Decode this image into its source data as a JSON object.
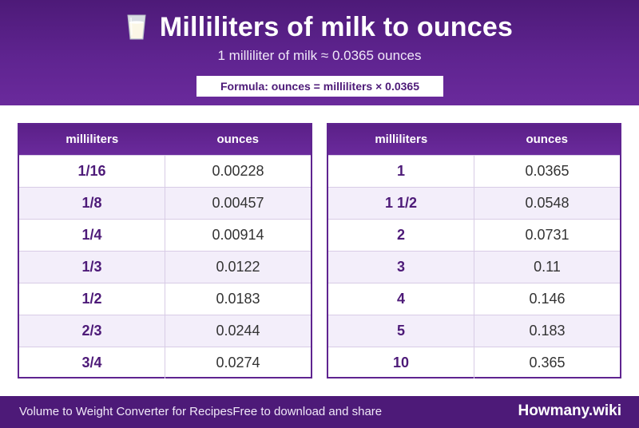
{
  "header": {
    "icon": "milk-glass-icon",
    "title": "Milliliters of milk to ounces",
    "subtitle": "1 milliliter of milk ≈ 0.0365 ounces",
    "formula": "Formula: ounces = milliliters × 0.0365"
  },
  "tables": [
    {
      "headers": [
        "milliliters",
        "ounces"
      ],
      "rows": [
        {
          "ml": "1/16",
          "oz": "0.00228"
        },
        {
          "ml": "1/8",
          "oz": "0.00457"
        },
        {
          "ml": "1/4",
          "oz": "0.00914"
        },
        {
          "ml": "1/3",
          "oz": "0.0122"
        },
        {
          "ml": "1/2",
          "oz": "0.0183"
        },
        {
          "ml": "2/3",
          "oz": "0.0244"
        },
        {
          "ml": "3/4",
          "oz": "0.0274"
        }
      ]
    },
    {
      "headers": [
        "milliliters",
        "ounces"
      ],
      "rows": [
        {
          "ml": "1",
          "oz": "0.0365"
        },
        {
          "ml": "1 1/2",
          "oz": "0.0548"
        },
        {
          "ml": "2",
          "oz": "0.0731"
        },
        {
          "ml": "3",
          "oz": "0.11"
        },
        {
          "ml": "4",
          "oz": "0.146"
        },
        {
          "ml": "5",
          "oz": "0.183"
        },
        {
          "ml": "10",
          "oz": "0.365"
        }
      ]
    }
  ],
  "footer": {
    "text": "Volume to Weight Converter for RecipesFree to download and share",
    "brand": "Howmany.wiki"
  },
  "colors": {
    "primary": "#4d1a78",
    "header_gradient_end": "#6a2a9c",
    "row_alt": "#f3eefa"
  }
}
